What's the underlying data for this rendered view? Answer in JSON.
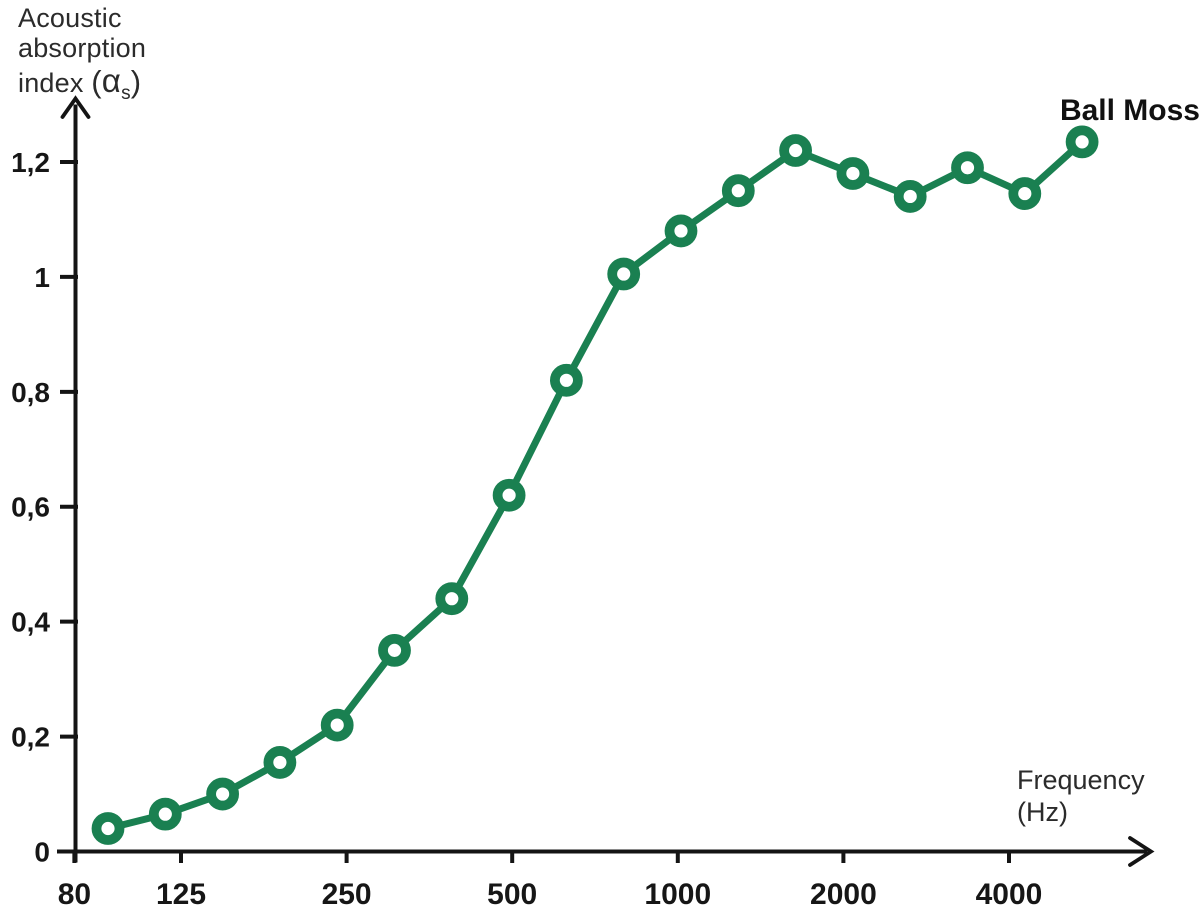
{
  "chart_data": {
    "type": "line",
    "title": "",
    "ylabel": "Acoustic absorption index (αs)",
    "xlabel": "Frequency (Hz)",
    "series_label": "Ball Moss",
    "y_axis_title": {
      "line1": "Acoustic",
      "line2": "absorption",
      "line3_text": "index ",
      "paren_open": "(",
      "alpha": "α",
      "alpha_sub": "s",
      "paren_close": ")"
    },
    "x_axis_title": {
      "line1": "Frequency",
      "line2": "(Hz)"
    },
    "x_scale": "log",
    "grid": false,
    "decimal_separator": ",",
    "ylim": [
      0,
      1.3
    ],
    "x": [
      100,
      125,
      160,
      200,
      250,
      315,
      400,
      500,
      630,
      800,
      1000,
      1250,
      1600,
      2000,
      2500,
      3150,
      4000,
      5000
    ],
    "series": [
      {
        "name": "Ball Moss",
        "values": [
          0.04,
          0.065,
          0.1,
          0.155,
          0.22,
          0.35,
          0.44,
          0.62,
          0.82,
          1.005,
          1.08,
          1.15,
          1.22,
          1.18,
          1.14,
          1.19,
          1.145,
          1.235
        ]
      }
    ],
    "x_ticks": [
      {
        "label": "80",
        "freq": 80
      },
      {
        "label": "125",
        "freq": 125
      },
      {
        "label": "250",
        "freq": 250
      },
      {
        "label": "500",
        "freq": 500
      },
      {
        "label": "1000",
        "freq": 1000
      },
      {
        "label": "2000",
        "freq": 2000
      },
      {
        "label": "4000",
        "freq": 4000
      }
    ],
    "y_ticks": [
      {
        "label": "0",
        "value": 0
      },
      {
        "label": "0,2",
        "value": 0.2
      },
      {
        "label": "0,4",
        "value": 0.4
      },
      {
        "label": "0,6",
        "value": 0.6
      },
      {
        "label": "0,8",
        "value": 0.8
      },
      {
        "label": "1",
        "value": 1.0
      },
      {
        "label": "1,2",
        "value": 1.2
      }
    ],
    "colors": {
      "line": "#1a8051",
      "marker_fill": "#ffffff",
      "axis": "#141414",
      "tick_text": "#161616",
      "label_text": "#2b2b2b"
    }
  }
}
